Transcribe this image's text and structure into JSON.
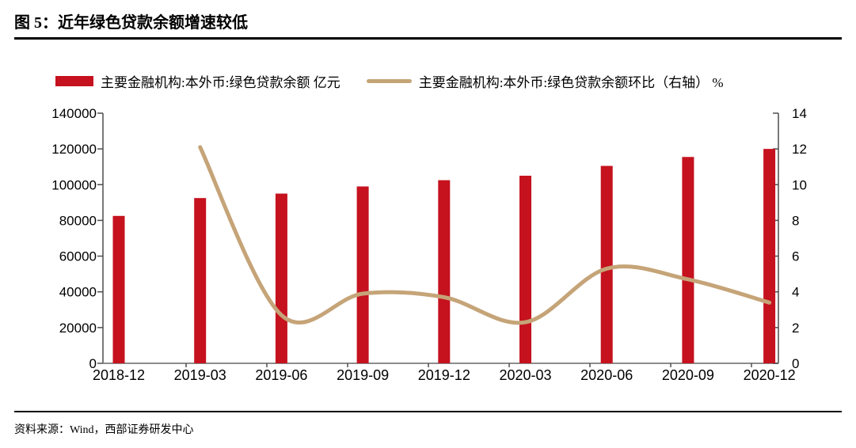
{
  "figure": {
    "title": "图 5：近年绿色贷款余额增速较低",
    "source": "资料来源：Wind，西部证券研发中心"
  },
  "colors": {
    "bar_red": "#C5121E",
    "line_tan": "#C5A478",
    "axis": "#4d4d4d",
    "text": "#000000"
  },
  "legend": [
    {
      "type": "bar",
      "label": "主要金融机构:本外币:绿色贷款余额 亿元",
      "color": "#C5121E"
    },
    {
      "type": "line",
      "label": "主要金融机构:本外币:绿色贷款余额环比（右轴） %",
      "color": "#C5A478"
    }
  ],
  "chart_data": {
    "type": "bar",
    "subtype": "bar+line-combo",
    "categories": [
      "2018-12",
      "2019-03",
      "2019-06",
      "2019-09",
      "2019-12",
      "2020-03",
      "2020-06",
      "2020-09",
      "2020-12"
    ],
    "series": [
      {
        "name": "主要金融机构:本外币:绿色贷款余额",
        "unit": "亿元",
        "type": "bar",
        "axis": "left",
        "color": "#C5121E",
        "values": [
          82500,
          92500,
          95000,
          99000,
          102500,
          105000,
          110500,
          115500,
          120000
        ]
      },
      {
        "name": "主要金融机构:本外币:绿色贷款余额环比",
        "unit": "%",
        "type": "line",
        "axis": "right",
        "color": "#C5A478",
        "smooth": true,
        "values": [
          null,
          12.1,
          2.7,
          3.9,
          3.7,
          2.3,
          5.3,
          4.7,
          3.4
        ]
      }
    ],
    "left_axis": {
      "min": 0,
      "max": 140000,
      "step": 20000,
      "tick_labels": [
        "0",
        "20000",
        "40000",
        "60000",
        "80000",
        "100000",
        "120000",
        "140000"
      ]
    },
    "right_axis": {
      "min": 0,
      "max": 14,
      "step": 2,
      "tick_labels": [
        "0",
        "2",
        "4",
        "6",
        "8",
        "10",
        "12",
        "14"
      ]
    },
    "grid": false,
    "legend_position": "top",
    "title": "近年绿色贷款余额增速较低"
  }
}
